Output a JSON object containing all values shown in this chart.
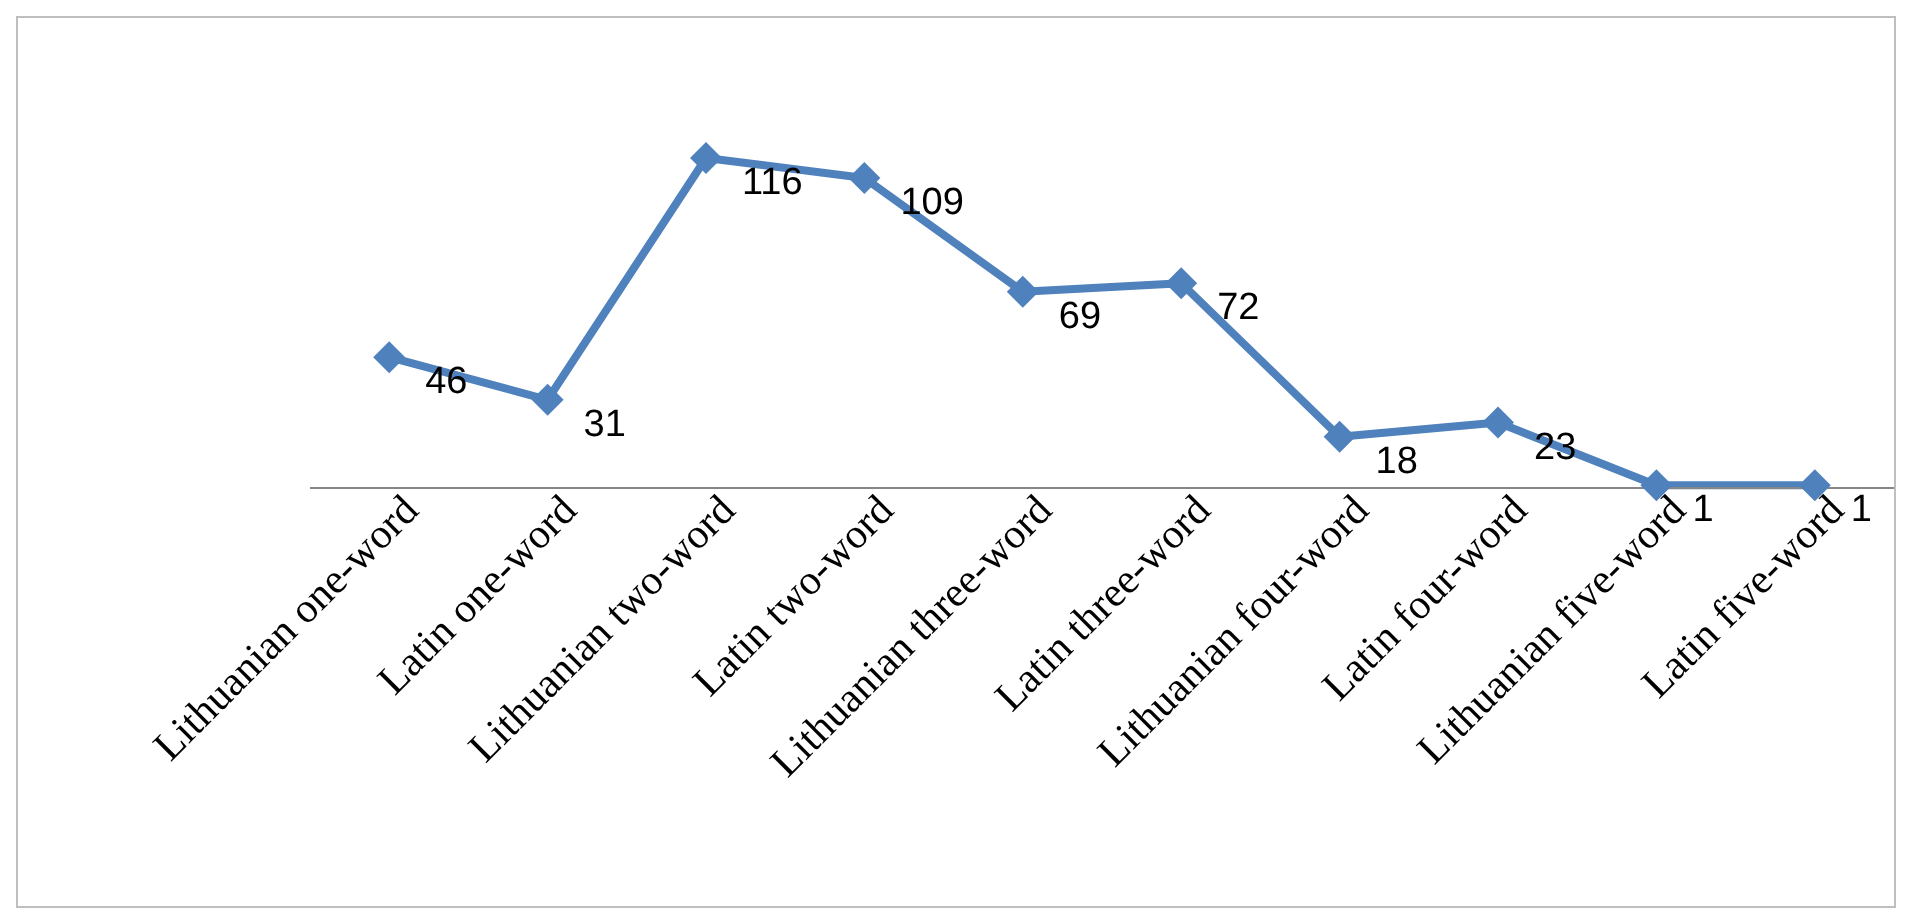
{
  "chart_data": {
    "type": "line",
    "categories": [
      "Lithuanian one-word",
      "Latin one-word",
      "Lithuanian two-word",
      "Latin two-word",
      "Lithuanian three-word",
      "Latin three-word",
      "Lithuanian four-word",
      "Latin four-word",
      "Lithuanian five-word",
      "Latin five-word"
    ],
    "values": [
      46,
      31,
      116,
      109,
      69,
      72,
      18,
      23,
      1,
      1
    ],
    "color": "#4f81bd",
    "marker": "diamond",
    "data_labels": true,
    "tick_labels": "x"
  }
}
